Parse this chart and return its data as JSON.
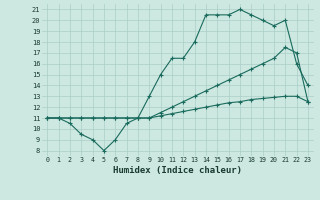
{
  "xlabel": "Humidex (Indice chaleur)",
  "background_color": "#cce8e0",
  "grid_color": "#aacfc8",
  "line_color": "#1a6b5e",
  "xlim": [
    -0.5,
    23.5
  ],
  "ylim": [
    7.5,
    21.5
  ],
  "xticks": [
    0,
    1,
    2,
    3,
    4,
    5,
    6,
    7,
    8,
    9,
    10,
    11,
    12,
    13,
    14,
    15,
    16,
    17,
    18,
    19,
    20,
    21,
    22,
    23
  ],
  "yticks": [
    8,
    9,
    10,
    11,
    12,
    13,
    14,
    15,
    16,
    17,
    18,
    19,
    20,
    21
  ],
  "line1_x": [
    0,
    1,
    2,
    3,
    4,
    5,
    6,
    7,
    8,
    9,
    10,
    11,
    12,
    13,
    14,
    15,
    16,
    17,
    18,
    19,
    20,
    21,
    22,
    23
  ],
  "line1_y": [
    11,
    11,
    10.5,
    9.5,
    9,
    8,
    9,
    10.5,
    11,
    13,
    15,
    16.5,
    16.5,
    18,
    20.5,
    20.5,
    20.5,
    21,
    20.5,
    20,
    19.5,
    20,
    16,
    14
  ],
  "line2_x": [
    0,
    1,
    2,
    3,
    4,
    5,
    6,
    7,
    8,
    9,
    10,
    11,
    12,
    13,
    14,
    15,
    16,
    17,
    18,
    19,
    20,
    21,
    22,
    23
  ],
  "line2_y": [
    11,
    11,
    11,
    11,
    11,
    11,
    11,
    11,
    11,
    11,
    11.5,
    12,
    12.5,
    13,
    13.5,
    14,
    14.5,
    15,
    15.5,
    16,
    16.5,
    17.5,
    17,
    12.5
  ],
  "line3_x": [
    0,
    1,
    2,
    3,
    4,
    5,
    6,
    7,
    8,
    9,
    10,
    11,
    12,
    13,
    14,
    15,
    16,
    17,
    18,
    19,
    20,
    21,
    22,
    23
  ],
  "line3_y": [
    11,
    11,
    11,
    11,
    11,
    11,
    11,
    11,
    11,
    11,
    11.2,
    11.4,
    11.6,
    11.8,
    12,
    12.2,
    12.4,
    12.5,
    12.7,
    12.8,
    12.9,
    13,
    13,
    12.5
  ]
}
